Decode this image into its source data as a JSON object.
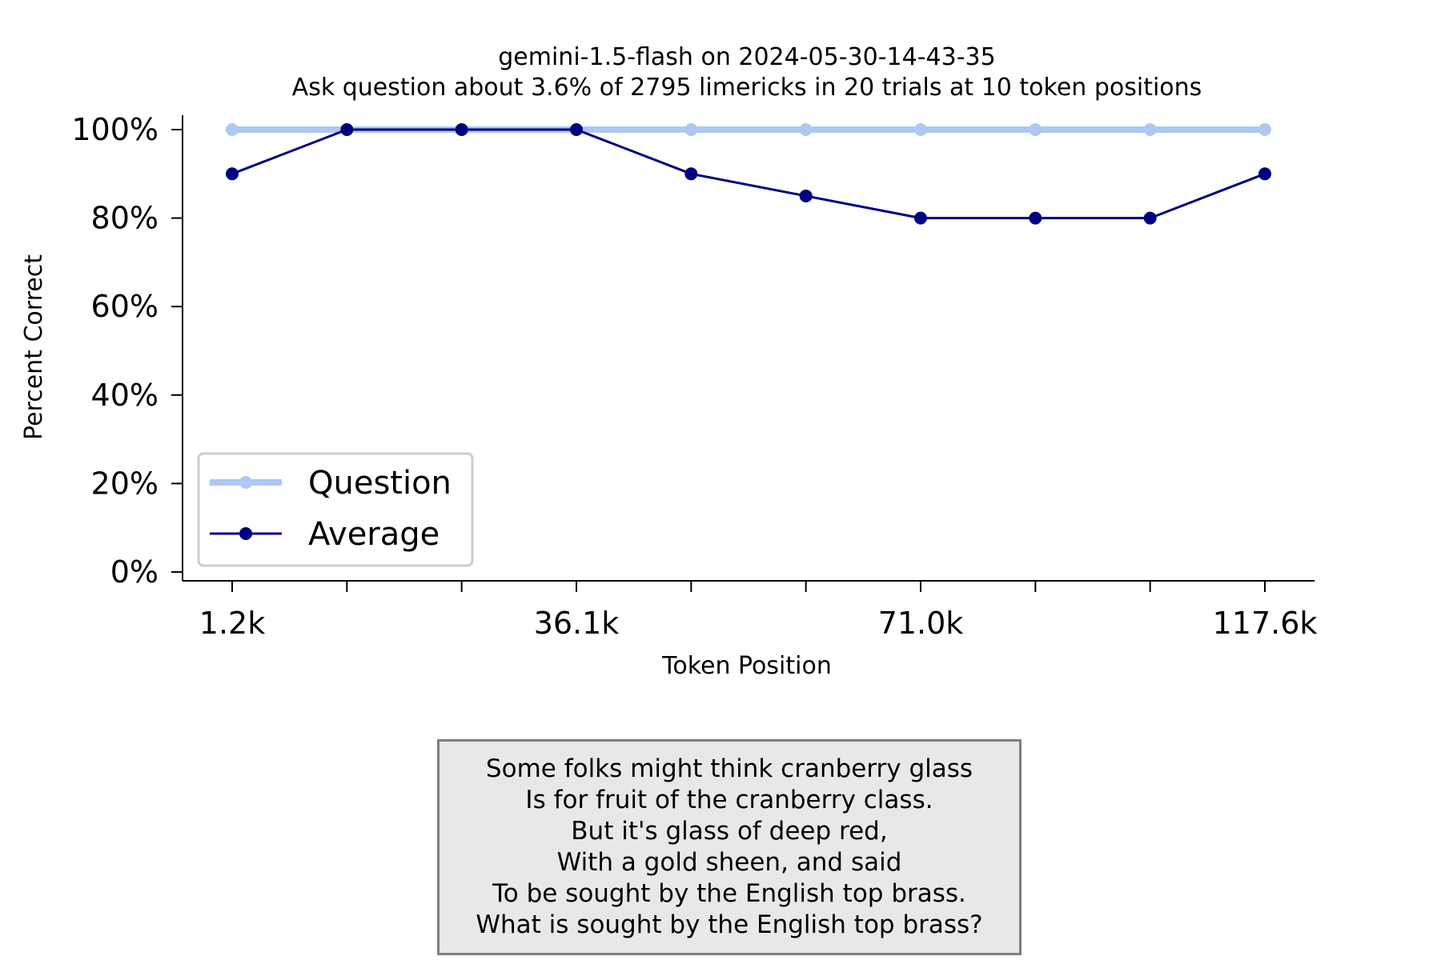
{
  "chart_data": {
    "type": "line",
    "title_lines": [
      "gemini-1.5-flash on 2024-05-30-14-43-35",
      "Ask question about 3.6% of 2795 limericks in 20 trials at 10 token positions"
    ],
    "xlabel": "Token Position",
    "ylabel": "Percent Correct",
    "xtick_labels": [
      "1.2k",
      "",
      "",
      "36.1k",
      "",
      "",
      "71.0k",
      "",
      "",
      "117.6k"
    ],
    "ytick_labels": [
      "0%",
      "20%",
      "40%",
      "60%",
      "80%",
      "100%"
    ],
    "ylim": [
      0,
      100
    ],
    "grid": false,
    "legend_position": "lower left",
    "series": [
      {
        "name": "Question",
        "color": "#aec7f3",
        "values": [
          100,
          100,
          100,
          100,
          100,
          100,
          100,
          100,
          100,
          100
        ]
      },
      {
        "name": "Average",
        "color": "#000080",
        "values": [
          90,
          100,
          100,
          100,
          90,
          85,
          80,
          80,
          80,
          90
        ]
      }
    ]
  },
  "limerick": {
    "lines": [
      "Some folks might think cranberry glass",
      "Is for fruit of the cranberry class.",
      "But it's glass of deep red,",
      "With a gold sheen, and said",
      "To be sought by the English top brass.",
      "What is sought by the English top brass?"
    ]
  }
}
